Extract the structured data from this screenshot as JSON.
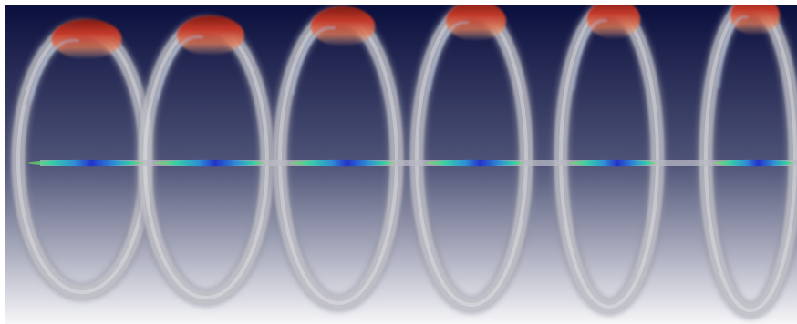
{
  "viewport": {
    "background": {
      "top_color": "#0b0f3d",
      "mid_color": "#4f5478",
      "bottom_color": "#f6f6f8"
    },
    "ring_color": "#c9c9ce",
    "ring_count": 6,
    "hotspot_colormap": [
      "#7d1a12",
      "#c2382a",
      "#e07a55",
      "#f1b590"
    ],
    "band_colormap": [
      "#2333c8",
      "#2f8fd6",
      "#34d0a6",
      "#7be05a"
    ],
    "axis_rod_color": "#b9bac4"
  }
}
